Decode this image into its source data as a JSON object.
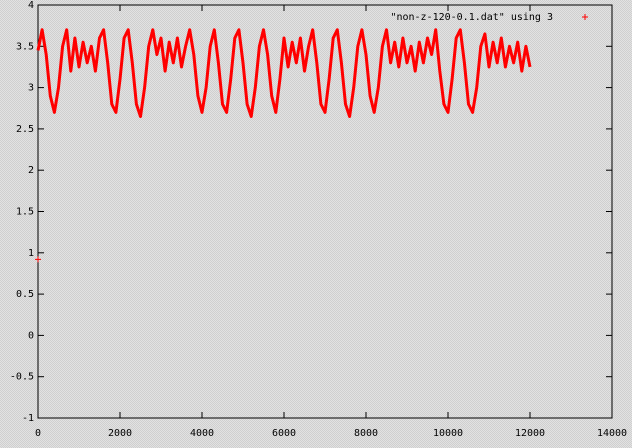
{
  "chart_data": {
    "type": "line",
    "legend": "top-right",
    "grid": false,
    "xlim": [
      0,
      14000
    ],
    "xticks": [
      0,
      2000,
      4000,
      6000,
      8000,
      10000,
      12000,
      14000
    ],
    "ylim": [
      -1,
      4
    ],
    "yticks": [
      -1,
      -0.5,
      0,
      0.5,
      1,
      1.5,
      2,
      2.5,
      3,
      3.5,
      4
    ],
    "x": [
      0,
      0,
      0,
      100,
      200,
      300,
      400,
      500,
      600,
      700,
      800,
      900,
      1000,
      1100,
      1200,
      1300,
      1400,
      1500,
      1600,
      1700,
      1800,
      1900,
      2000,
      2100,
      2200,
      2300,
      2400,
      2500,
      2600,
      2700,
      2800,
      2900,
      3000,
      3100,
      3200,
      3300,
      3400,
      3500,
      3600,
      3700,
      3800,
      3900,
      4000,
      4100,
      4200,
      4300,
      4400,
      4500,
      4600,
      4700,
      4800,
      4900,
      5000,
      5100,
      5200,
      5300,
      5400,
      5500,
      5600,
      5700,
      5800,
      5900,
      6000,
      6100,
      6200,
      6300,
      6400,
      6500,
      6600,
      6700,
      6800,
      6900,
      7000,
      7100,
      7200,
      7300,
      7400,
      7500,
      7600,
      7700,
      7800,
      7900,
      8000,
      8100,
      8200,
      8300,
      8400,
      8500,
      8600,
      8700,
      8800,
      8900,
      9000,
      9100,
      9200,
      9300,
      9400,
      9500,
      9600,
      9700,
      9800,
      9900,
      10000,
      10100,
      10200,
      10300,
      10400,
      10500,
      10600,
      10700,
      10800,
      10900,
      11000,
      11100,
      11200,
      11300,
      11400,
      11500,
      11600,
      11700,
      11800,
      11900,
      12000
    ],
    "series": [
      {
        "name": "\"non-z-120-0.1.dat\" using 3",
        "color": "#ff0000",
        "values": [
          0.92,
          null,
          3.45,
          3.7,
          3.4,
          2.9,
          2.7,
          3.0,
          3.5,
          3.7,
          3.2,
          3.6,
          3.25,
          3.55,
          3.3,
          3.5,
          3.2,
          3.6,
          3.7,
          3.3,
          2.8,
          2.7,
          3.1,
          3.6,
          3.7,
          3.3,
          2.8,
          2.65,
          3.0,
          3.5,
          3.7,
          3.4,
          3.6,
          3.2,
          3.55,
          3.3,
          3.6,
          3.25,
          3.5,
          3.7,
          3.4,
          2.9,
          2.7,
          3.0,
          3.5,
          3.7,
          3.3,
          2.8,
          2.7,
          3.1,
          3.6,
          3.7,
          3.3,
          2.8,
          2.65,
          3.0,
          3.5,
          3.7,
          3.4,
          2.9,
          2.7,
          3.1,
          3.6,
          3.25,
          3.55,
          3.3,
          3.6,
          3.2,
          3.5,
          3.7,
          3.3,
          2.8,
          2.7,
          3.1,
          3.6,
          3.7,
          3.3,
          2.8,
          2.65,
          3.0,
          3.5,
          3.7,
          3.4,
          2.9,
          2.7,
          3.0,
          3.5,
          3.7,
          3.3,
          3.55,
          3.25,
          3.6,
          3.3,
          3.5,
          3.2,
          3.55,
          3.3,
          3.6,
          3.4,
          3.7,
          3.2,
          2.8,
          2.7,
          3.1,
          3.6,
          3.7,
          3.3,
          2.8,
          2.7,
          3.0,
          3.5,
          3.65,
          3.25,
          3.55,
          3.3,
          3.6,
          3.25,
          3.5,
          3.3,
          3.55,
          3.2,
          3.5,
          3.25
        ]
      }
    ]
  }
}
